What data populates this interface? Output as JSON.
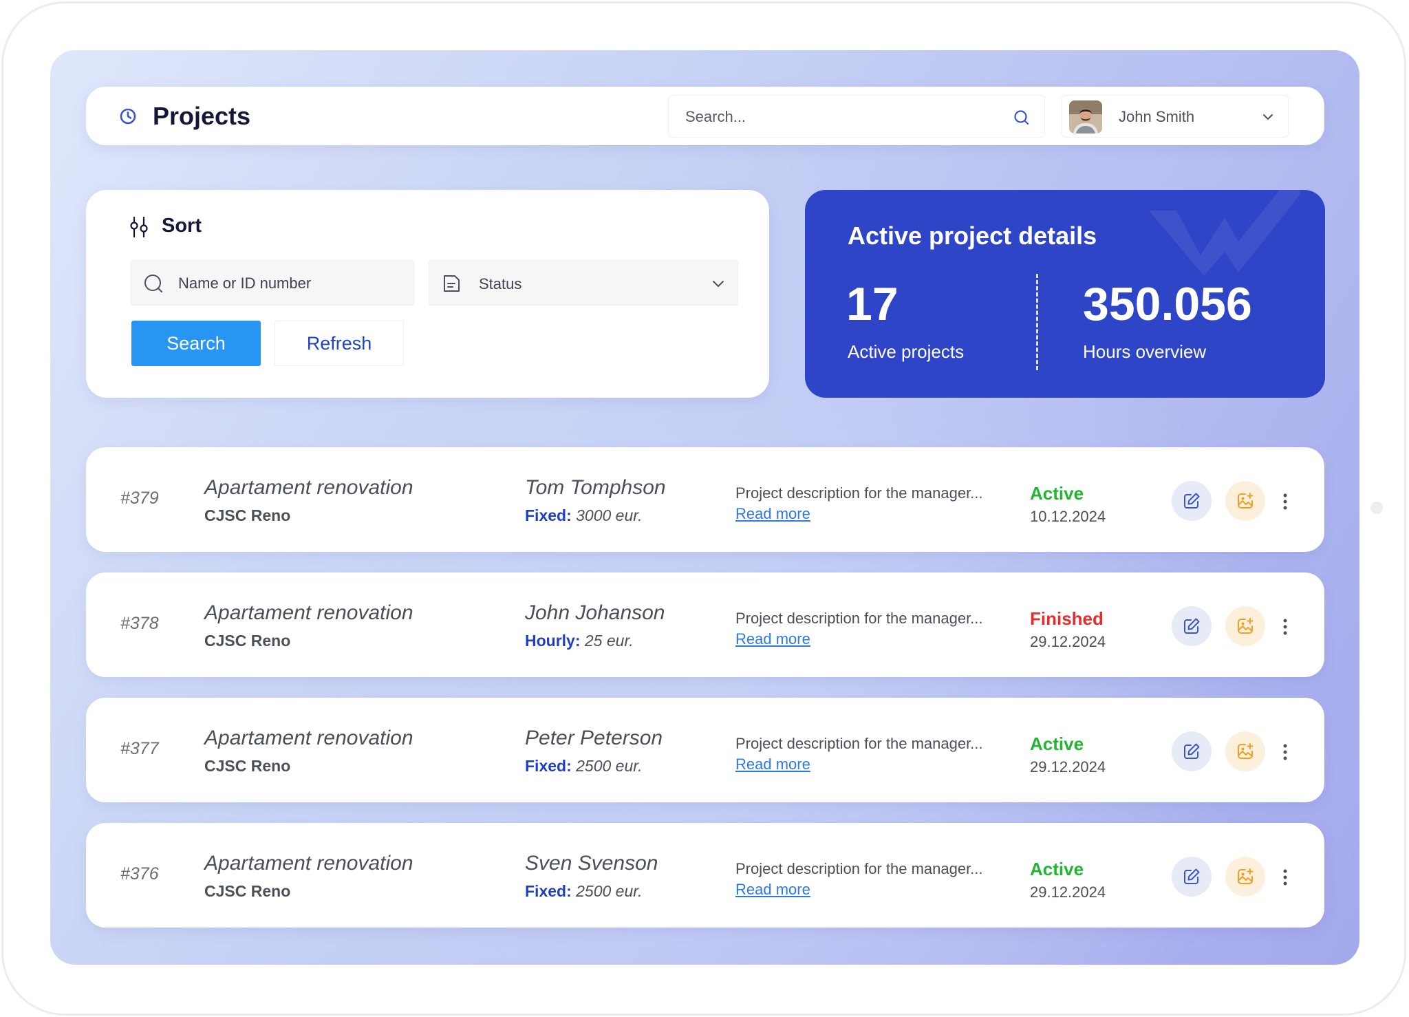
{
  "header": {
    "title": "Projects",
    "search_placeholder": "Search...",
    "user_name": "John Smith"
  },
  "sort": {
    "title": "Sort",
    "name_placeholder": "Name or ID number",
    "status_label": "Status",
    "search_button": "Search",
    "refresh_button": "Refresh"
  },
  "details": {
    "title": "Active project details",
    "active_projects_value": "17",
    "active_projects_label": "Active projects",
    "hours_value": "350.056",
    "hours_label": "Hours overview"
  },
  "projects": [
    {
      "id": "#379",
      "title": "Apartament renovation",
      "company": "CJSC Reno",
      "person": "Tom Tomphson",
      "rate_type": "Fixed:",
      "rate_value": "3000 eur.",
      "description": "Project description for the manager...",
      "link": "Read more",
      "status": "Active",
      "status_color": "#22b532",
      "date": "10.12.2024"
    },
    {
      "id": "#378",
      "title": "Apartament renovation",
      "company": "CJSC Reno",
      "person": "John Johanson",
      "rate_type": "Hourly:",
      "rate_value": "25 eur.",
      "description": "Project description for the manager...",
      "link": "Read more",
      "status": "Finished",
      "status_color": "#e52d2d",
      "date": "29.12.2024"
    },
    {
      "id": "#377",
      "title": "Apartament renovation",
      "company": "CJSC Reno",
      "person": "Peter Peterson",
      "rate_type": "Fixed:",
      "rate_value": "2500 eur.",
      "description": "Project description for the manager...",
      "link": "Read more",
      "status": "Active",
      "status_color": "#22b532",
      "date": "29.12.2024"
    },
    {
      "id": "#376",
      "title": "Apartament renovation",
      "company": "CJSC Reno",
      "person": "Sven Svenson",
      "rate_type": "Fixed:",
      "rate_value": "2500 eur.",
      "description": "Project description for the manager...",
      "link": "Read more",
      "status": "Active",
      "status_color": "#22b532",
      "date": "29.12.2024"
    }
  ],
  "icons": {
    "title": "clock-icon",
    "search": "search-icon",
    "user_menu": "chevron-down-icon",
    "sort": "sliders-icon",
    "status": "document-icon",
    "edit": "edit-icon",
    "photo": "image-add-icon",
    "more": "more-vertical-icon"
  },
  "colors": {
    "accent_blue": "#2795f3",
    "card_blue": "#2f45c8",
    "label_blue": "#1f3fc4",
    "link_blue": "#2c78e6"
  }
}
